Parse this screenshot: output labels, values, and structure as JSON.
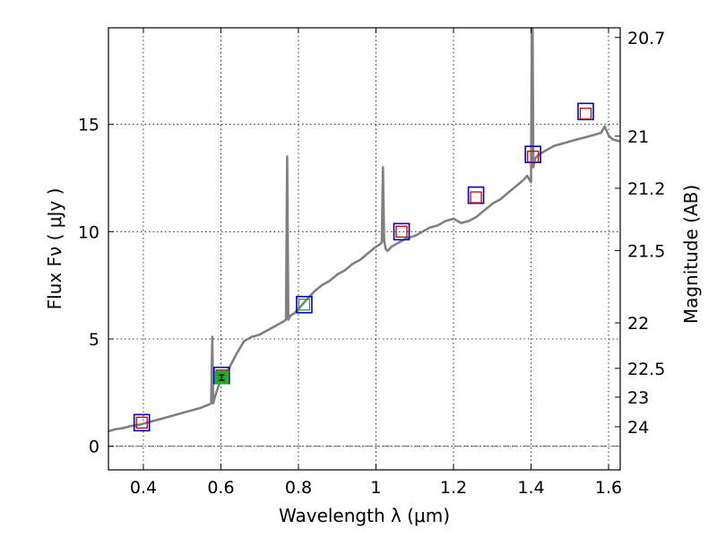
{
  "chart_data": {
    "type": "line",
    "xlabel": "Wavelength  λ (μm)",
    "ylabel_left": "Flux  Fν  ( μJy )",
    "ylabel_right": "Magnitude (AB)",
    "xlim": [
      0.31,
      1.63
    ],
    "ylim": [
      -1.1,
      19.5
    ],
    "x_ticks": [
      0.4,
      0.6,
      0.8,
      1.0,
      1.2,
      1.4,
      1.6
    ],
    "x_tick_labels": [
      "0.4",
      "0.6",
      "0.8",
      "1",
      "1.2",
      "1.4",
      "1.6"
    ],
    "y_ticks": [
      0,
      5,
      10,
      15
    ],
    "y_tick_labels": [
      "0",
      "5",
      "10",
      "15"
    ],
    "right_ticks": [
      {
        "label": "20.7",
        "flux": 19.05
      },
      {
        "label": "21",
        "flux": 14.45
      },
      {
        "label": "21.2",
        "flux": 12.02
      },
      {
        "label": "21.5",
        "flux": 9.12
      },
      {
        "label": "22",
        "flux": 5.75
      },
      {
        "label": "22.5",
        "flux": 3.63
      },
      {
        "label": "23",
        "flux": 2.29
      },
      {
        "label": "24",
        "flux": 0.91
      }
    ],
    "grid": true,
    "colors": {
      "model": "#808080",
      "observed_box": "#0000cc",
      "model_box": "#cc0000",
      "green_box": "#22aa22",
      "zero_line": "#555555"
    },
    "series": [
      {
        "name": "model spectrum",
        "style": "line",
        "x": [
          0.31,
          0.33,
          0.35,
          0.37,
          0.39,
          0.41,
          0.43,
          0.45,
          0.47,
          0.49,
          0.51,
          0.53,
          0.55,
          0.57,
          0.575,
          0.578,
          0.58,
          0.583,
          0.59,
          0.6,
          0.62,
          0.64,
          0.65,
          0.66,
          0.67,
          0.68,
          0.7,
          0.72,
          0.74,
          0.75,
          0.76,
          0.768,
          0.771,
          0.774,
          0.777,
          0.78,
          0.79,
          0.8,
          0.82,
          0.84,
          0.86,
          0.88,
          0.9,
          0.92,
          0.94,
          0.96,
          0.98,
          1.0,
          1.01,
          1.015,
          1.018,
          1.021,
          1.025,
          1.03,
          1.04,
          1.06,
          1.08,
          1.1,
          1.12,
          1.14,
          1.16,
          1.18,
          1.2,
          1.22,
          1.24,
          1.26,
          1.28,
          1.3,
          1.32,
          1.34,
          1.36,
          1.38,
          1.39,
          1.4,
          1.402,
          1.404,
          1.406,
          1.408,
          1.41,
          1.42,
          1.44,
          1.46,
          1.48,
          1.5,
          1.52,
          1.54,
          1.56,
          1.58,
          1.59,
          1.6,
          1.61,
          1.63
        ],
        "y": [
          0.7,
          0.8,
          0.85,
          0.95,
          1.0,
          1.1,
          1.2,
          1.3,
          1.4,
          1.5,
          1.6,
          1.7,
          1.8,
          1.95,
          2.0,
          5.1,
          2.0,
          2.2,
          2.6,
          3.1,
          3.6,
          4.3,
          4.6,
          4.9,
          5.0,
          5.1,
          5.2,
          5.4,
          5.6,
          5.7,
          5.8,
          5.9,
          13.5,
          5.9,
          6.0,
          6.1,
          6.2,
          6.4,
          6.8,
          7.2,
          7.5,
          7.7,
          8.0,
          8.2,
          8.5,
          8.7,
          9.0,
          9.3,
          9.4,
          9.5,
          13.0,
          9.6,
          9.2,
          9.1,
          9.3,
          9.5,
          9.7,
          9.8,
          10.0,
          10.2,
          10.3,
          10.5,
          10.6,
          10.4,
          10.5,
          10.7,
          11.0,
          11.3,
          11.5,
          11.8,
          12.1,
          12.4,
          12.6,
          12.3,
          19.5,
          19.5,
          13.0,
          13.2,
          13.4,
          13.6,
          13.8,
          14.0,
          14.1,
          14.2,
          14.3,
          14.4,
          14.5,
          14.6,
          14.9,
          14.5,
          14.3,
          14.2
        ]
      },
      {
        "name": "observed photometry",
        "style": "open-square",
        "x": [
          0.396,
          0.602,
          0.815,
          1.066,
          1.258,
          1.405,
          1.541
        ],
        "y": [
          1.1,
          3.3,
          6.6,
          10.0,
          11.7,
          13.6,
          15.6
        ]
      },
      {
        "name": "model photometry",
        "style": "open-square",
        "x": [
          0.396,
          0.602,
          0.815,
          1.066,
          1.258,
          1.405,
          1.541
        ],
        "y": [
          1.1,
          3.3,
          6.6,
          10.0,
          11.6,
          13.5,
          15.5
        ]
      },
      {
        "name": "highlighted band",
        "style": "filled-square",
        "x": [
          0.602
        ],
        "y": [
          3.2
        ]
      }
    ]
  }
}
